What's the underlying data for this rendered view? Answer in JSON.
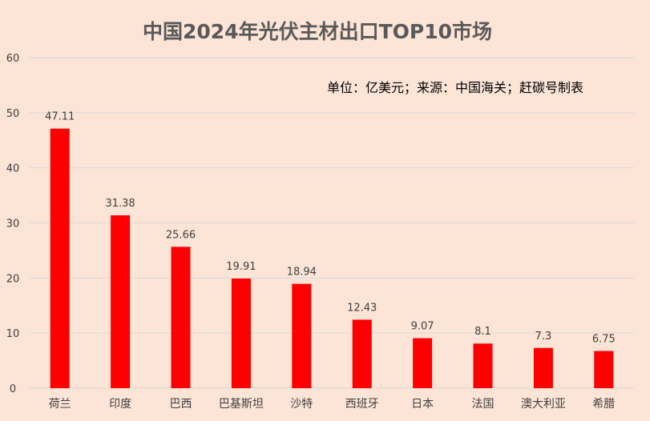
{
  "chart_data": {
    "type": "bar",
    "title": "中国2024年光伏主材出口TOP10市场",
    "subtitle": "单位：亿美元；来源：中国海关；赶碳号制表",
    "categories": [
      "荷兰",
      "印度",
      "巴西",
      "巴基斯坦",
      "沙特",
      "西班牙",
      "日本",
      "法国",
      "澳大利亚",
      "希腊"
    ],
    "values": [
      47.11,
      31.38,
      25.66,
      19.91,
      18.94,
      12.43,
      9.07,
      8.1,
      7.3,
      6.75
    ],
    "value_labels": [
      "47.11",
      "31.38",
      "25.66",
      "19.91",
      "18.94",
      "12.43",
      "9.07",
      "8.1",
      "7.3",
      "6.75"
    ],
    "ylim": [
      0,
      60
    ],
    "yticks": [
      "0",
      "10",
      "20",
      "30",
      "40",
      "50",
      "60"
    ],
    "grid": true,
    "legend": "none",
    "bar_color": "#ff0000",
    "background": "#fce4d6"
  }
}
